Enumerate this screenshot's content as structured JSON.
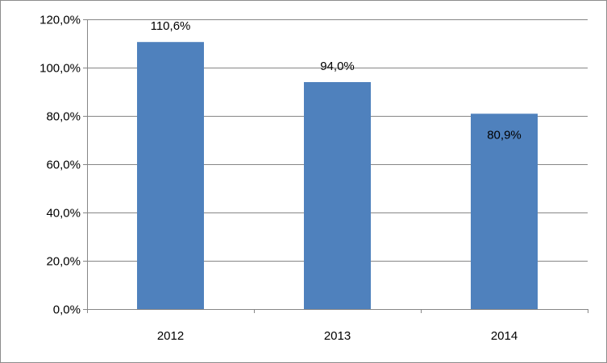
{
  "chart_data": {
    "type": "bar",
    "categories": [
      "2012",
      "2013",
      "2014"
    ],
    "values": [
      110.6,
      94.0,
      80.9
    ],
    "data_labels": [
      "110,6%",
      "94,0%",
      "80,9%"
    ],
    "ylim": [
      0,
      120
    ],
    "yticks": [
      0,
      20,
      40,
      60,
      80,
      100,
      120
    ],
    "ytick_labels": [
      "0,0%",
      "20,0%",
      "40,0%",
      "60,0%",
      "80,0%",
      "100,0%",
      "120,0%"
    ],
    "title": "",
    "xlabel": "",
    "ylabel": "",
    "grid": true,
    "legend": "none",
    "bar_color": "#4f81bd",
    "grid_color": "#868686"
  }
}
